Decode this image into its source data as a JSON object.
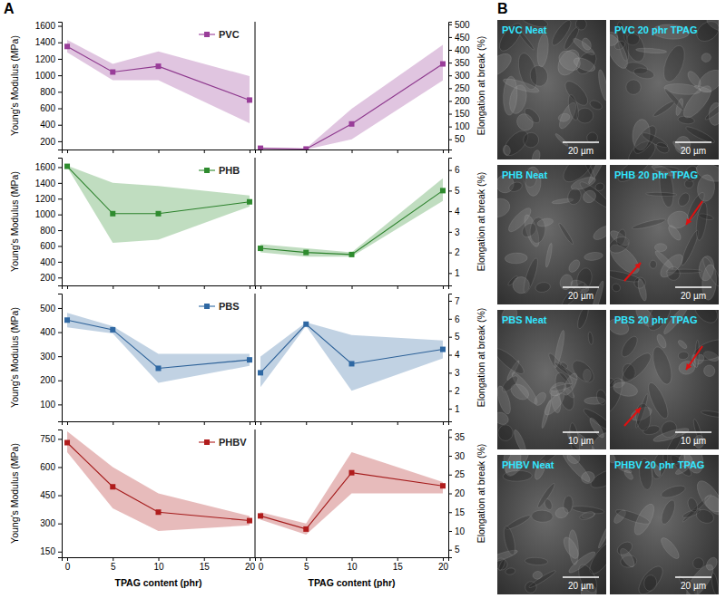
{
  "panel_labels": [
    "A",
    "B"
  ],
  "chart_data": [
    {
      "type": "line",
      "y_label": "Young's Modulus (MPa)",
      "legend": "top-right",
      "tick_labels": "y",
      "x": [
        0,
        5,
        10,
        20
      ],
      "xlim": [
        -0.6,
        20.6
      ],
      "xticks": [
        0,
        5,
        10,
        15,
        20
      ],
      "ylim": [
        100,
        1650
      ],
      "yticks": [
        200,
        400,
        600,
        800,
        1000,
        1200,
        1400,
        1600
      ],
      "series": [
        {
          "name": "PVC",
          "color": "#993d99",
          "marker": "square",
          "values": [
            1350,
            1040,
            1110,
            700
          ],
          "lower": [
            1280,
            940,
            940,
            420
          ],
          "upper": [
            1430,
            1140,
            1290,
            990
          ]
        }
      ]
    },
    {
      "type": "line",
      "y2_label": "Elongation at break (%)",
      "tick_labels": "y",
      "x": [
        0,
        5,
        10,
        20
      ],
      "xlim": [
        -0.6,
        20.6
      ],
      "xticks": [
        0,
        5,
        10,
        15,
        20
      ],
      "y2lim": [
        10,
        510
      ],
      "y2ticks": [
        50,
        100,
        150,
        200,
        250,
        300,
        350,
        400,
        450,
        500
      ],
      "series": [
        {
          "axis": "y2",
          "color": "#993d99",
          "marker": "square",
          "values": [
            15,
            12,
            110,
            345
          ],
          "lower": [
            12,
            10,
            50,
            280
          ],
          "upper": [
            18,
            14,
            170,
            420
          ]
        }
      ]
    },
    {
      "type": "line",
      "y_label": "Young's Modulus (MPa)",
      "legend": "top-right",
      "tick_labels": "y",
      "x": [
        0,
        5,
        10,
        20
      ],
      "xlim": [
        -0.6,
        20.6
      ],
      "xticks": [
        0,
        5,
        10,
        15,
        20
      ],
      "ylim": [
        100,
        1720
      ],
      "yticks": [
        200,
        400,
        600,
        800,
        1000,
        1200,
        1400,
        1600
      ],
      "series": [
        {
          "name": "PHB",
          "color": "#2e8b2e",
          "marker": "square",
          "values": [
            1610,
            1010,
            1010,
            1160
          ],
          "lower": [
            1600,
            640,
            680,
            1100
          ],
          "upper": [
            1620,
            1400,
            1360,
            1240
          ]
        }
      ]
    },
    {
      "type": "line",
      "y2_label": "Elongation at break (%)",
      "tick_labels": "y",
      "x": [
        0,
        5,
        10,
        20
      ],
      "xlim": [
        -0.6,
        20.6
      ],
      "xticks": [
        0,
        5,
        10,
        15,
        20
      ],
      "y2lim": [
        0.4,
        6.6
      ],
      "y2ticks": [
        1,
        2,
        3,
        4,
        5,
        6
      ],
      "series": [
        {
          "axis": "y2",
          "color": "#2e8b2e",
          "marker": "square",
          "values": [
            2.2,
            2.0,
            1.9,
            5.0
          ],
          "lower": [
            2.0,
            1.8,
            1.8,
            4.5
          ],
          "upper": [
            2.4,
            2.2,
            2.0,
            5.6
          ]
        }
      ]
    },
    {
      "type": "line",
      "y_label": "Young's Modulus (MPa)",
      "legend": "top-right",
      "tick_labels": "y",
      "x": [
        0,
        5,
        10,
        20
      ],
      "xlim": [
        -0.6,
        20.6
      ],
      "xticks": [
        0,
        5,
        10,
        15,
        20
      ],
      "ylim": [
        30,
        560
      ],
      "yticks": [
        100,
        200,
        300,
        400,
        500
      ],
      "series": [
        {
          "name": "PBS",
          "color": "#2f68a3",
          "marker": "square",
          "values": [
            450,
            410,
            250,
            285
          ],
          "lower": [
            420,
            395,
            190,
            260
          ],
          "upper": [
            480,
            425,
            310,
            310
          ]
        }
      ]
    },
    {
      "type": "line",
      "y2_label": "Elongation at break (%)",
      "tick_labels": "y",
      "x": [
        0,
        5,
        10,
        20
      ],
      "xlim": [
        -0.6,
        20.6
      ],
      "xticks": [
        0,
        5,
        10,
        15,
        20
      ],
      "y2lim": [
        0.3,
        7.4
      ],
      "y2ticks": [
        1,
        2,
        3,
        4,
        5,
        6,
        7
      ],
      "series": [
        {
          "axis": "y2",
          "color": "#2f68a3",
          "marker": "square",
          "values": [
            3.0,
            5.7,
            3.5,
            4.3
          ],
          "lower": [
            2.2,
            5.6,
            2.0,
            3.8
          ],
          "upper": [
            3.9,
            5.8,
            5.1,
            4.8
          ]
        }
      ]
    },
    {
      "type": "line",
      "y_label": "Young's Modulus (MPa)",
      "x_label": "TPAG content (phr)",
      "legend": "top-right",
      "x": [
        0,
        5,
        10,
        20
      ],
      "xlim": [
        -0.6,
        20.6
      ],
      "xticks": [
        0,
        5,
        10,
        15,
        20
      ],
      "ylim": [
        120,
        800
      ],
      "yticks": [
        150,
        300,
        450,
        600,
        750
      ],
      "series": [
        {
          "name": "PHBV",
          "color": "#b01c1c",
          "marker": "square",
          "values": [
            730,
            495,
            360,
            315
          ],
          "lower": [
            680,
            380,
            260,
            290
          ],
          "upper": [
            790,
            600,
            460,
            340
          ]
        }
      ]
    },
    {
      "type": "line",
      "y2_label": "Elongation at break (%)",
      "x_label": "TPAG content (phr)",
      "x": [
        0,
        5,
        10,
        20
      ],
      "xlim": [
        -0.6,
        20.6
      ],
      "xticks": [
        0,
        5,
        10,
        15,
        20
      ],
      "y2lim": [
        3,
        37
      ],
      "y2ticks": [
        5,
        10,
        15,
        20,
        25,
        30,
        35
      ],
      "series": [
        {
          "axis": "y2",
          "color": "#b01c1c",
          "marker": "square",
          "values": [
            14,
            10.5,
            25.5,
            22
          ],
          "lower": [
            13,
            9,
            20,
            20
          ],
          "upper": [
            15,
            12,
            31,
            23
          ]
        }
      ]
    }
  ],
  "sem_images": [
    {
      "label": "PVC Neat",
      "scale_bar": "20 µm"
    },
    {
      "label": "PVC 20 phr TPAG",
      "scale_bar": "20 µm"
    },
    {
      "label": "PHB Neat",
      "scale_bar": "20 µm"
    },
    {
      "label": "PHB 20 phr TPAG",
      "scale_bar": "20 µm",
      "arrows": true
    },
    {
      "label": "PBS Neat",
      "scale_bar": "10 µm"
    },
    {
      "label": "PBS 20 phr TPAG",
      "scale_bar": "10 µm",
      "arrows": true
    },
    {
      "label": "PHBV Neat",
      "scale_bar": "20 µm"
    },
    {
      "label": "PHBV 20 phr TPAG",
      "scale_bar": "20 µm"
    }
  ]
}
